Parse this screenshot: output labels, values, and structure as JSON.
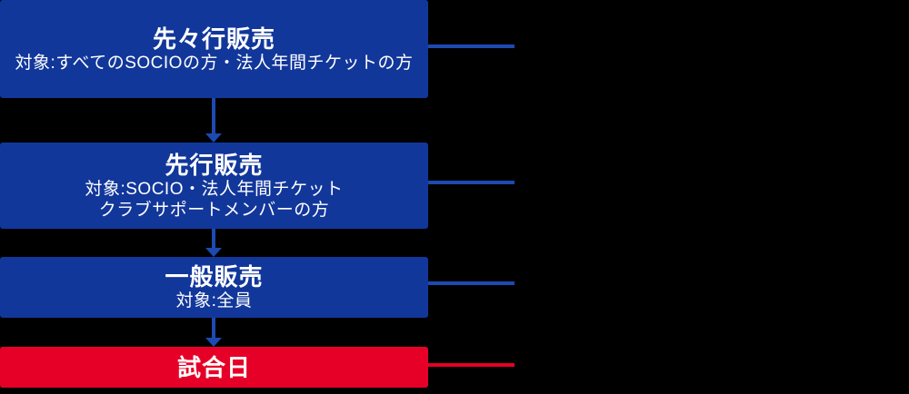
{
  "palette": {
    "background": "#000000",
    "stage_blue": "#12379B",
    "connector_blue": "#1C4AB2",
    "stage_red": "#E60027",
    "text_white": "#FFFFFF"
  },
  "stages": [
    {
      "title": "先々行販売",
      "details": [
        "対象:すべてのSOCIOの方・法人年間チケットの方"
      ]
    },
    {
      "title": "先行販売",
      "details": [
        "対象:SOCIO・法人年間チケット",
        "クラブサポートメンバーの方"
      ]
    },
    {
      "title": "一般販売",
      "details": [
        "対象:全員"
      ]
    },
    {
      "title": "試合日",
      "details": []
    }
  ]
}
